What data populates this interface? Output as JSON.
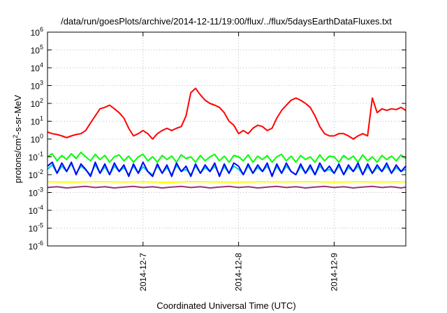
{
  "chart_data": {
    "type": "line",
    "title": "/data/run/goesPlots/archive/2014-12-11/19:00/flux/../flux/5daysEarthDataFluxes.txt",
    "xlabel": "Coordinated Universal Time (UTC)",
    "ylabel_main": "protons/cm",
    "ylabel_sup": "2",
    "ylabel_rest": "-s-sr-MeV",
    "y_scale": "log",
    "ylim": [
      1e-06,
      1000000.0
    ],
    "xlim": [
      0,
      3.75
    ],
    "grid": true,
    "x_ticks": [
      {
        "x": 1,
        "label": "2014-12-7"
      },
      {
        "x": 2,
        "label": "2014-12-8"
      },
      {
        "x": 3,
        "label": "2014-12-9"
      }
    ],
    "y_ticks": [
      {
        "base": "10",
        "exp": "-6",
        "value": 1e-06
      },
      {
        "base": "10",
        "exp": "-5",
        "value": 1e-05
      },
      {
        "base": "10",
        "exp": "-4",
        "value": 0.0001
      },
      {
        "base": "10",
        "exp": "-3",
        "value": 0.001
      },
      {
        "base": "10",
        "exp": "-2",
        "value": 0.01
      },
      {
        "base": "10",
        "exp": "-1",
        "value": 0.1
      },
      {
        "base": "10",
        "exp": "0",
        "value": 1
      },
      {
        "base": "10",
        "exp": "1",
        "value": 10
      },
      {
        "base": "10",
        "exp": "2",
        "value": 100
      },
      {
        "base": "10",
        "exp": "3",
        "value": 1000
      },
      {
        "base": "10",
        "exp": "4",
        "value": 10000
      },
      {
        "base": "10",
        "exp": "5",
        "value": 100000
      },
      {
        "base": "10",
        "exp": "6",
        "value": 1000000
      }
    ],
    "series": [
      {
        "color": "#ff0000",
        "width": 2,
        "x": [
          0,
          0.05,
          0.1,
          0.15,
          0.2,
          0.25,
          0.3,
          0.35,
          0.4,
          0.45,
          0.5,
          0.55,
          0.6,
          0.65,
          0.7,
          0.75,
          0.8,
          0.85,
          0.9,
          0.95,
          1.0,
          1.05,
          1.1,
          1.15,
          1.2,
          1.25,
          1.3,
          1.35,
          1.4,
          1.45,
          1.5,
          1.55,
          1.6,
          1.65,
          1.7,
          1.75,
          1.8,
          1.85,
          1.9,
          1.95,
          2.0,
          2.05,
          2.1,
          2.15,
          2.2,
          2.25,
          2.3,
          2.35,
          2.4,
          2.45,
          2.5,
          2.55,
          2.6,
          2.65,
          2.7,
          2.75,
          2.8,
          2.85,
          2.9,
          2.95,
          3.0,
          3.05,
          3.1,
          3.15,
          3.2,
          3.25,
          3.3,
          3.35,
          3.4,
          3.45,
          3.5,
          3.55,
          3.6,
          3.65,
          3.7,
          3.75
        ],
        "y": [
          2.5,
          2,
          1.8,
          1.5,
          1.2,
          1.5,
          1.8,
          2,
          3,
          8,
          20,
          50,
          60,
          80,
          50,
          30,
          15,
          4,
          1.5,
          2,
          3,
          2,
          1,
          2,
          3,
          4,
          3,
          4,
          5,
          20,
          400,
          700,
          300,
          150,
          100,
          80,
          60,
          30,
          10,
          6,
          2,
          3,
          2,
          4,
          6,
          5,
          3,
          4,
          15,
          40,
          80,
          150,
          200,
          150,
          100,
          60,
          20,
          5,
          2,
          1.5,
          1.5,
          2,
          2,
          1.5,
          1,
          1.5,
          2,
          1.5,
          200,
          30,
          50,
          40,
          50,
          45,
          60,
          40
        ]
      },
      {
        "color": "#00ff00",
        "width": 2,
        "x": [
          0,
          0.05,
          0.1,
          0.15,
          0.2,
          0.25,
          0.3,
          0.35,
          0.4,
          0.45,
          0.5,
          0.55,
          0.6,
          0.65,
          0.7,
          0.75,
          0.8,
          0.85,
          0.9,
          0.95,
          1.0,
          1.05,
          1.1,
          1.15,
          1.2,
          1.25,
          1.3,
          1.35,
          1.4,
          1.45,
          1.5,
          1.55,
          1.6,
          1.65,
          1.7,
          1.75,
          1.8,
          1.85,
          1.9,
          1.95,
          2.0,
          2.05,
          2.1,
          2.15,
          2.2,
          2.25,
          2.3,
          2.35,
          2.4,
          2.45,
          2.5,
          2.55,
          2.6,
          2.65,
          2.7,
          2.75,
          2.8,
          2.85,
          2.9,
          2.95,
          3.0,
          3.05,
          3.1,
          3.15,
          3.2,
          3.25,
          3.3,
          3.35,
          3.4,
          3.45,
          3.5,
          3.55,
          3.6,
          3.65,
          3.7,
          3.75
        ],
        "y": [
          0.1,
          0.15,
          0.06,
          0.12,
          0.07,
          0.15,
          0.08,
          0.18,
          0.1,
          0.06,
          0.14,
          0.07,
          0.12,
          0.05,
          0.1,
          0.13,
          0.06,
          0.11,
          0.05,
          0.1,
          0.14,
          0.06,
          0.1,
          0.05,
          0.12,
          0.07,
          0.11,
          0.05,
          0.13,
          0.08,
          0.1,
          0.05,
          0.12,
          0.06,
          0.1,
          0.14,
          0.06,
          0.11,
          0.05,
          0.12,
          0.1,
          0.06,
          0.13,
          0.05,
          0.11,
          0.07,
          0.12,
          0.05,
          0.1,
          0.14,
          0.06,
          0.11,
          0.05,
          0.12,
          0.07,
          0.1,
          0.05,
          0.13,
          0.06,
          0.11,
          0.1,
          0.05,
          0.12,
          0.07,
          0.11,
          0.05,
          0.13,
          0.06,
          0.1,
          0.05,
          0.12,
          0.07,
          0.11,
          0.06,
          0.13,
          0.08
        ]
      },
      {
        "color": "#00cccc",
        "width": 2,
        "x": [
          0,
          0.05,
          0.1,
          0.15,
          0.2,
          0.25,
          0.3,
          0.35,
          0.4,
          0.45,
          0.5,
          0.55,
          0.6,
          0.65,
          0.7,
          0.75,
          0.8,
          0.85,
          0.9,
          0.95,
          1.0,
          1.05,
          1.1,
          1.15,
          1.2,
          1.25,
          1.3,
          1.35,
          1.4,
          1.45,
          1.5,
          1.55,
          1.6,
          1.65,
          1.7,
          1.75,
          1.8,
          1.85,
          1.9,
          1.95,
          2.0,
          2.05,
          2.1,
          2.15,
          2.2,
          2.25,
          2.3,
          2.35,
          2.4,
          2.45,
          2.5,
          2.55,
          2.6,
          2.65,
          2.7,
          2.75,
          2.8,
          2.85,
          2.9,
          2.95,
          3.0,
          3.05,
          3.1,
          3.15,
          3.2,
          3.25,
          3.3,
          3.35,
          3.4,
          3.45,
          3.5,
          3.55,
          3.6,
          3.65,
          3.7,
          3.75
        ],
        "y": [
          0.02,
          0.035,
          0.012,
          0.03,
          0.015,
          0.04,
          0.012,
          0.03,
          0.018,
          0.01,
          0.035,
          0.012,
          0.028,
          0.01,
          0.03,
          0.015,
          0.025,
          0.01,
          0.03,
          0.012,
          0.028,
          0.015,
          0.01,
          0.03,
          0.012,
          0.025,
          0.01,
          0.032,
          0.015,
          0.02,
          0.01,
          0.03,
          0.012,
          0.025,
          0.015,
          0.03,
          0.01,
          0.028,
          0.012,
          0.03,
          0.02,
          0.01,
          0.03,
          0.012,
          0.025,
          0.015,
          0.03,
          0.01,
          0.028,
          0.012,
          0.03,
          0.015,
          0.01,
          0.028,
          0.012,
          0.025,
          0.01,
          0.03,
          0.015,
          0.02,
          0.012,
          0.03,
          0.01,
          0.025,
          0.015,
          0.03,
          0.01,
          0.028,
          0.012,
          0.025,
          0.015,
          0.03,
          0.012,
          0.025,
          0.015,
          0.02
        ]
      },
      {
        "color": "#0000ff",
        "width": 2,
        "x": [
          0,
          0.05,
          0.1,
          0.15,
          0.2,
          0.25,
          0.3,
          0.35,
          0.4,
          0.45,
          0.5,
          0.55,
          0.6,
          0.65,
          0.7,
          0.75,
          0.8,
          0.85,
          0.9,
          0.95,
          1.0,
          1.05,
          1.1,
          1.15,
          1.2,
          1.25,
          1.3,
          1.35,
          1.4,
          1.45,
          1.5,
          1.55,
          1.6,
          1.65,
          1.7,
          1.75,
          1.8,
          1.85,
          1.9,
          1.95,
          2.0,
          2.05,
          2.1,
          2.15,
          2.2,
          2.25,
          2.3,
          2.35,
          2.4,
          2.45,
          2.5,
          2.55,
          2.6,
          2.65,
          2.7,
          2.75,
          2.8,
          2.85,
          2.9,
          2.95,
          3.0,
          3.05,
          3.1,
          3.15,
          3.2,
          3.25,
          3.3,
          3.35,
          3.4,
          3.45,
          3.5,
          3.55,
          3.6,
          3.65,
          3.7,
          3.75
        ],
        "y": [
          0.03,
          0.05,
          0.012,
          0.045,
          0.015,
          0.05,
          0.01,
          0.04,
          0.02,
          0.008,
          0.05,
          0.012,
          0.04,
          0.01,
          0.045,
          0.015,
          0.035,
          0.008,
          0.04,
          0.012,
          0.05,
          0.015,
          0.008,
          0.04,
          0.012,
          0.035,
          0.008,
          0.045,
          0.015,
          0.03,
          0.008,
          0.04,
          0.012,
          0.035,
          0.015,
          0.045,
          0.008,
          0.04,
          0.012,
          0.045,
          0.03,
          0.01,
          0.04,
          0.012,
          0.035,
          0.015,
          0.045,
          0.008,
          0.04,
          0.012,
          0.045,
          0.015,
          0.01,
          0.04,
          0.012,
          0.035,
          0.01,
          0.045,
          0.015,
          0.03,
          0.012,
          0.04,
          0.01,
          0.035,
          0.015,
          0.045,
          0.01,
          0.04,
          0.012,
          0.035,
          0.015,
          0.045,
          0.012,
          0.035,
          0.015,
          0.03
        ]
      },
      {
        "color": "#ffff00",
        "width": 2,
        "x": [
          0,
          0.25,
          0.5,
          0.75,
          1.0,
          1.25,
          1.5,
          1.75,
          2.0,
          2.25,
          2.5,
          2.75,
          3.0,
          3.25,
          3.5,
          3.75
        ],
        "y": [
          0.004,
          0.0038,
          0.0041,
          0.0039,
          0.004,
          0.0037,
          0.0041,
          0.0039,
          0.0038,
          0.004,
          0.0039,
          0.0041,
          0.0038,
          0.004,
          0.0039,
          0.004
        ]
      },
      {
        "color": "#993377",
        "width": 2,
        "x": [
          0,
          0.1,
          0.2,
          0.3,
          0.4,
          0.5,
          0.6,
          0.7,
          0.8,
          0.9,
          1.0,
          1.1,
          1.2,
          1.3,
          1.4,
          1.5,
          1.6,
          1.7,
          1.8,
          1.9,
          2.0,
          2.1,
          2.2,
          2.3,
          2.4,
          2.5,
          2.6,
          2.7,
          2.8,
          2.9,
          3.0,
          3.1,
          3.2,
          3.3,
          3.4,
          3.5,
          3.6,
          3.7,
          3.75
        ],
        "y": [
          0.0019,
          0.0021,
          0.0018,
          0.002,
          0.0022,
          0.0019,
          0.0021,
          0.0018,
          0.002,
          0.0022,
          0.0019,
          0.0021,
          0.0018,
          0.002,
          0.0022,
          0.0019,
          0.0021,
          0.0018,
          0.002,
          0.0022,
          0.0019,
          0.0021,
          0.0018,
          0.002,
          0.0022,
          0.0019,
          0.0021,
          0.0018,
          0.002,
          0.0022,
          0.0019,
          0.0021,
          0.0018,
          0.002,
          0.0022,
          0.0019,
          0.0021,
          0.0018,
          0.002
        ]
      }
    ]
  }
}
